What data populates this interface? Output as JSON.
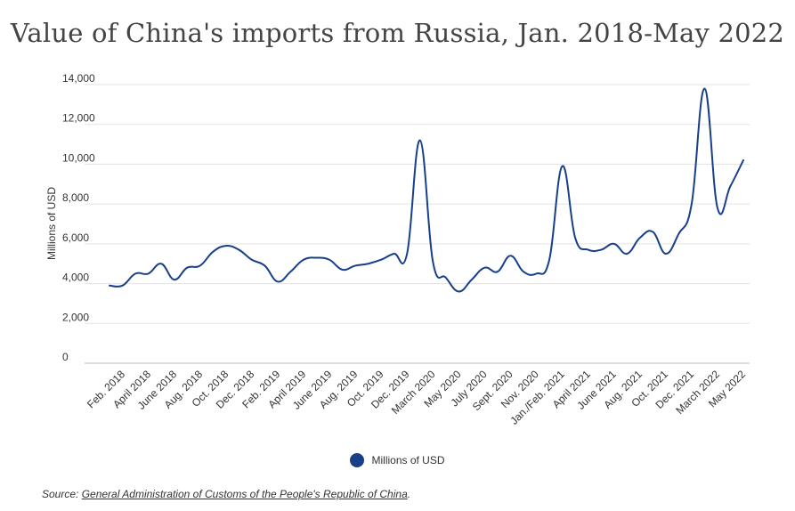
{
  "chart_data": {
    "type": "line",
    "title": "Value of China's imports from Russia, Jan. 2018-May 2022",
    "ylabel": "Millions of USD",
    "xlabel": "",
    "ylim": [
      0,
      14000
    ],
    "yticks": [
      0,
      2000,
      4000,
      6000,
      8000,
      10000,
      12000,
      14000
    ],
    "ytick_labels": [
      "0",
      "2,000",
      "4,000",
      "6,000",
      "8,000",
      "10,000",
      "12,000",
      "14,000"
    ],
    "x_tick_labels": [
      "Feb. 2018",
      "April 2018",
      "June 2018",
      "Aug. 2018",
      "Oct. 2018",
      "Dec. 2018",
      "Feb. 2019",
      "April 2019",
      "June 2019",
      "Aug. 2019",
      "Oct. 2019",
      "Dec. 2019",
      "March 2020",
      "May 2020",
      "July 2020",
      "Sept. 2020",
      "Nov. 2020",
      "Jan./Feb. 2021",
      "April 2021",
      "June 2021",
      "Aug. 2021",
      "Oct. 2021",
      "Dec. 2021",
      "March 2022",
      "May 2022"
    ],
    "grid": true,
    "legend_position": "bottom",
    "series": [
      {
        "name": "Millions of USD",
        "color": "#173f8a",
        "values": [
          3900,
          3900,
          4500,
          4500,
          5000,
          4200,
          4800,
          4900,
          5600,
          5900,
          5700,
          5200,
          4900,
          4100,
          4600,
          5200,
          5300,
          5200,
          4700,
          4900,
          5000,
          5200,
          5500,
          5500,
          11200,
          5100,
          4300,
          3600,
          4200,
          4800,
          4600,
          5400,
          4600,
          4500,
          5200,
          9900,
          6300,
          5700,
          5700,
          6000,
          5500,
          6300,
          6600,
          5500,
          6500,
          8000,
          13800,
          7800,
          8900,
          10200
        ]
      }
    ]
  },
  "legend": {
    "label": "Millions of USD",
    "color": "#173f8a"
  },
  "source": {
    "prefix": "Source: ",
    "link_text": "General Administration of Customs of the People's Republic of China",
    "suffix": "."
  }
}
